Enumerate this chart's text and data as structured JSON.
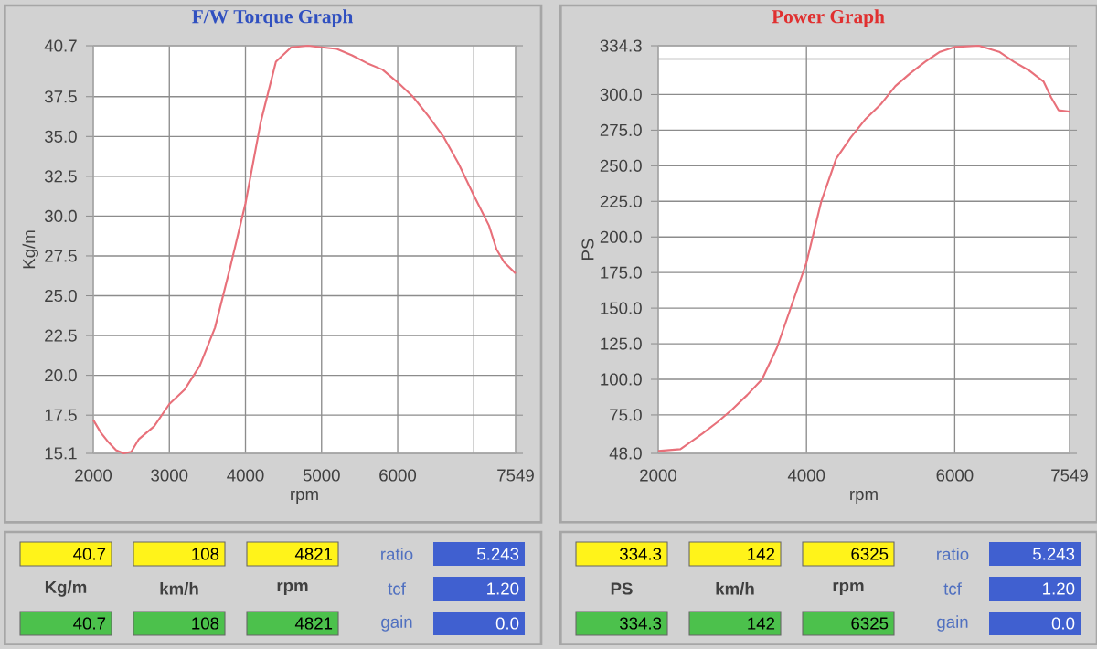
{
  "chart_data": [
    {
      "type": "line",
      "title": "F/W Torque Graph",
      "xlabel": "rpm",
      "ylabel": "Kg/m",
      "grid": true,
      "marker": "none",
      "xlim": [
        2000,
        7549
      ],
      "ylim": [
        15.1,
        40.7
      ],
      "xticks": [
        2000,
        3000,
        4000,
        5000,
        6000,
        {
          "value": 7000,
          "label": null
        },
        7549
      ],
      "yticks": [
        15.1,
        17.5,
        {
          "value": 20,
          "label": "20.0"
        },
        22.5,
        {
          "value": 25,
          "label": "25.0"
        },
        27.5,
        {
          "value": 30,
          "label": "30.0"
        },
        32.5,
        {
          "value": 35,
          "label": "35.0"
        },
        37.5,
        40.7
      ],
      "series": [
        {
          "color": "#e8707a",
          "x": [
            2000,
            2100,
            2200,
            2300,
            2400,
            2500,
            2600,
            2800,
            3000,
            3200,
            3400,
            3600,
            3800,
            4000,
            4200,
            4400,
            4600,
            4821,
            5000,
            5200,
            5400,
            5600,
            5800,
            6000,
            6200,
            6400,
            6600,
            6800,
            7000,
            7200,
            7300,
            7400,
            7549
          ],
          "values": [
            17.2,
            16.4,
            15.8,
            15.3,
            15.1,
            15.2,
            16.0,
            16.8,
            18.2,
            19.1,
            20.6,
            23.0,
            26.8,
            30.8,
            35.9,
            39.7,
            40.6,
            40.7,
            40.6,
            40.5,
            40.1,
            39.6,
            39.2,
            38.4,
            37.5,
            36.3,
            35.0,
            33.3,
            31.3,
            29.4,
            27.9,
            27.1,
            26.4
          ]
        }
      ],
      "annotations": [
        "40.7",
        "108",
        "4821",
        "ratio",
        "5.243",
        "Kg/m",
        "km/h",
        "rpm",
        "tcf",
        "1.20",
        "40.7",
        "108",
        "4821",
        "gain",
        "0.0"
      ]
    },
    {
      "type": "line",
      "title": "Power Graph",
      "xlabel": "rpm",
      "ylabel": "PS",
      "grid": true,
      "marker": "none",
      "xlim": [
        2000,
        7549
      ],
      "ylim": [
        48.0,
        334.3
      ],
      "xticks": [
        2000,
        4000,
        6000,
        7549
      ],
      "yticks": [
        {
          "value": 48,
          "label": "48.0"
        },
        {
          "value": 75,
          "label": "75.0"
        },
        {
          "value": 100,
          "label": "100.0"
        },
        {
          "value": 125,
          "label": "125.0"
        },
        {
          "value": 150,
          "label": "150.0"
        },
        {
          "value": 175,
          "label": "175.0"
        },
        {
          "value": 200,
          "label": "200.0"
        },
        {
          "value": 225,
          "label": "225.0"
        },
        {
          "value": 250,
          "label": "250.0"
        },
        {
          "value": 275,
          "label": "275.0"
        },
        {
          "value": 300,
          "label": "300.0"
        },
        {
          "value": 325,
          "label": null
        },
        334.3
      ],
      "series": [
        {
          "color": "#e8707a",
          "x": [
            2000,
            2300,
            2600,
            2800,
            3000,
            3200,
            3400,
            3600,
            3800,
            4000,
            4200,
            4400,
            4600,
            4800,
            5000,
            5200,
            5400,
            5600,
            5800,
            6000,
            6325,
            6600,
            6800,
            7000,
            7200,
            7300,
            7400,
            7549
          ],
          "values": [
            49.7,
            51,
            62,
            70,
            79,
            89,
            100,
            122,
            152,
            182,
            225,
            255,
            270,
            283,
            293,
            306,
            315,
            323,
            330,
            333.4,
            334.3,
            330,
            323,
            317,
            309,
            298,
            289,
            288
          ]
        }
      ],
      "annotations": [
        "334.3",
        "142",
        "6325",
        "ratio",
        "5.243",
        "PS",
        "km/h",
        "rpm",
        "tcf",
        "1.20",
        "334.3",
        "142",
        "6325",
        "gain",
        "0.0"
      ]
    }
  ]
}
